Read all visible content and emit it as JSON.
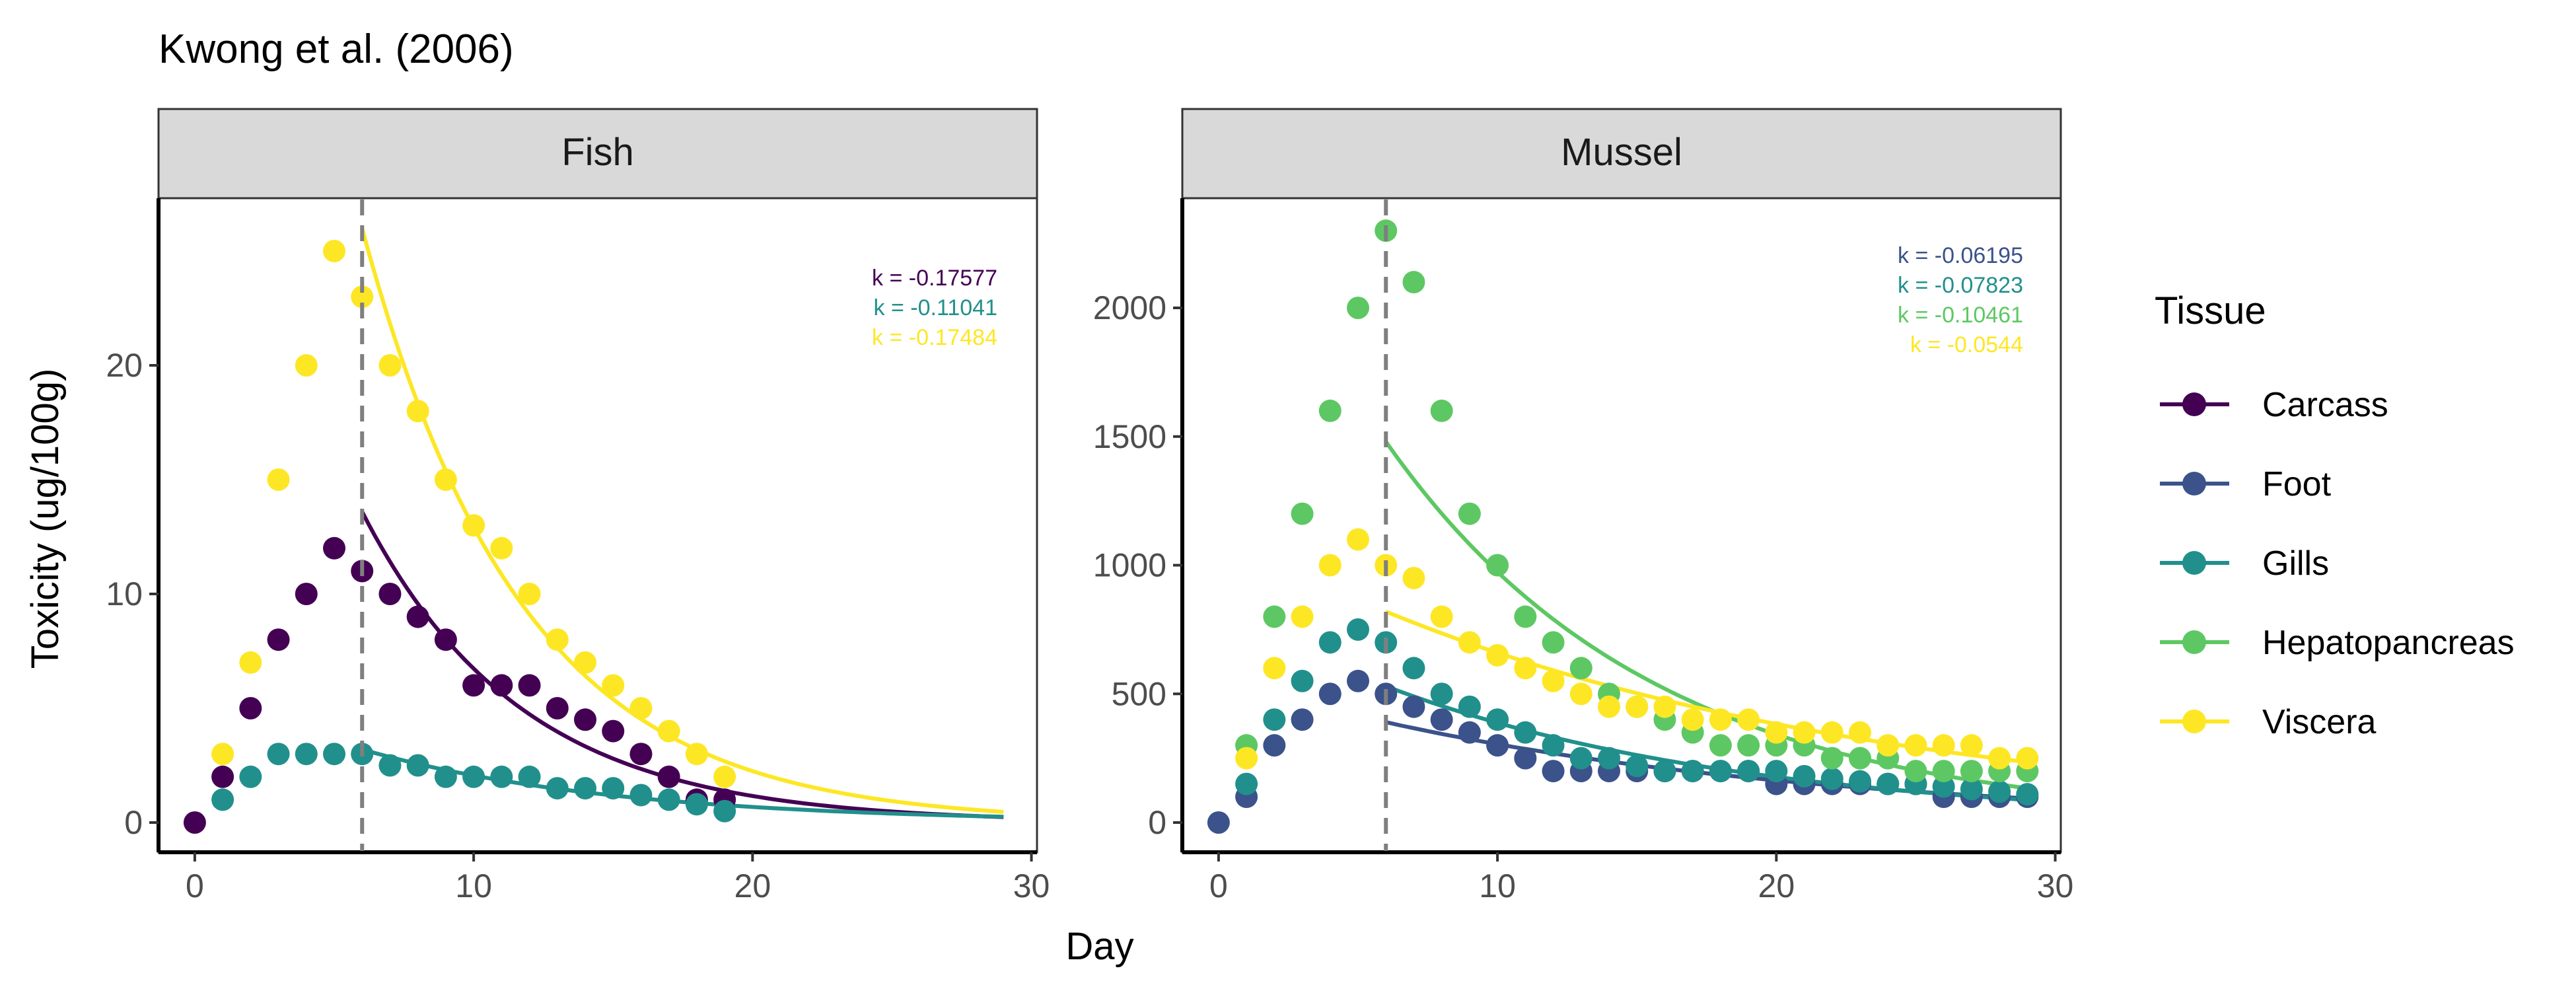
{
  "title": "Kwong et al. (2006)",
  "xlabel": "Day",
  "ylabel": "Toxicity (ug/100g)",
  "legend": {
    "title": "Tissue",
    "placement": "right",
    "items": [
      {
        "name": "Carcass",
        "color": "#440154"
      },
      {
        "name": "Foot",
        "color": "#3B528B"
      },
      {
        "name": "Gills",
        "color": "#21908C"
      },
      {
        "name": "Hepatopancreas",
        "color": "#5DC863"
      },
      {
        "name": "Viscera",
        "color": "#FDE725"
      }
    ]
  },
  "chart_data": [
    {
      "panel": "Fish",
      "type": "scatter",
      "xlim": [
        0,
        30
      ],
      "ylim": [
        0,
        26
      ],
      "xticks": [
        0,
        10,
        20,
        30
      ],
      "yticks": [
        0,
        10,
        20
      ],
      "x_tick_labels": [
        "0",
        "10",
        "20",
        "30"
      ],
      "y_tick_labels": [
        "0",
        "10",
        "20"
      ],
      "vline_x": 6,
      "grid": false,
      "k_labels": [
        {
          "text": "k = -0.17577",
          "color": "#440154"
        },
        {
          "text": "k = -0.11041",
          "color": "#21908C"
        },
        {
          "text": "k = -0.17484",
          "color": "#FDE725"
        }
      ],
      "series": [
        {
          "name": "Carcass",
          "color": "#440154",
          "points": [
            [
              0,
              0
            ],
            [
              1,
              2
            ],
            [
              2,
              5
            ],
            [
              3,
              8
            ],
            [
              4,
              10
            ],
            [
              5,
              12
            ],
            [
              6,
              11
            ],
            [
              7,
              10
            ],
            [
              8,
              9
            ],
            [
              9,
              8
            ],
            [
              10,
              6
            ],
            [
              11,
              6
            ],
            [
              12,
              6
            ],
            [
              13,
              5
            ],
            [
              14,
              4.5
            ],
            [
              15,
              4
            ],
            [
              16,
              3
            ],
            [
              17,
              2
            ],
            [
              18,
              1
            ],
            [
              19,
              1
            ]
          ],
          "fit": {
            "x0": 6,
            "y0": 13.6,
            "k": -0.17577,
            "x_end": 29
          }
        },
        {
          "name": "Gills",
          "color": "#21908C",
          "points": [
            [
              1,
              1
            ],
            [
              2,
              2
            ],
            [
              3,
              3
            ],
            [
              4,
              3
            ],
            [
              5,
              3
            ],
            [
              6,
              3
            ],
            [
              7,
              2.5
            ],
            [
              8,
              2.5
            ],
            [
              9,
              2
            ],
            [
              10,
              2
            ],
            [
              11,
              2
            ],
            [
              12,
              2
            ],
            [
              13,
              1.5
            ],
            [
              14,
              1.5
            ],
            [
              15,
              1.5
            ],
            [
              16,
              1.2
            ],
            [
              17,
              1
            ],
            [
              18,
              0.8
            ],
            [
              19,
              0.5
            ]
          ],
          "fit": {
            "x0": 6,
            "y0": 3.2,
            "k": -0.11041,
            "x_end": 29
          }
        },
        {
          "name": "Viscera",
          "color": "#FDE725",
          "points": [
            [
              1,
              3
            ],
            [
              2,
              7
            ],
            [
              3,
              15
            ],
            [
              4,
              20
            ],
            [
              5,
              25
            ],
            [
              6,
              23
            ],
            [
              7,
              20
            ],
            [
              8,
              18
            ],
            [
              9,
              15
            ],
            [
              10,
              13
            ],
            [
              11,
              12
            ],
            [
              12,
              10
            ],
            [
              13,
              8
            ],
            [
              14,
              7
            ],
            [
              15,
              6
            ],
            [
              16,
              5
            ],
            [
              17,
              4
            ],
            [
              18,
              3
            ],
            [
              19,
              2
            ]
          ],
          "fit": {
            "x0": 6,
            "y0": 26,
            "k": -0.17484,
            "x_end": 29
          }
        }
      ]
    },
    {
      "panel": "Mussel",
      "type": "scatter",
      "xlim": [
        0,
        30
      ],
      "ylim": [
        0,
        2350
      ],
      "xticks": [
        0,
        10,
        20,
        30
      ],
      "yticks": [
        0,
        500,
        1000,
        1500,
        2000
      ],
      "x_tick_labels": [
        "0",
        "10",
        "20",
        "30"
      ],
      "y_tick_labels": [
        "0",
        "500",
        "1000",
        "1500",
        "2000"
      ],
      "vline_x": 6,
      "grid": false,
      "k_labels": [
        {
          "text": "k = -0.06195",
          "color": "#3B528B"
        },
        {
          "text": "k = -0.07823",
          "color": "#21908C"
        },
        {
          "text": "k = -0.10461",
          "color": "#5DC863"
        },
        {
          "text": "k = -0.0544",
          "color": "#FDE725"
        }
      ],
      "series": [
        {
          "name": "Foot",
          "color": "#3B528B",
          "points": [
            [
              0,
              0
            ],
            [
              1,
              100
            ],
            [
              2,
              300
            ],
            [
              3,
              400
            ],
            [
              4,
              500
            ],
            [
              5,
              550
            ],
            [
              6,
              500
            ],
            [
              7,
              450
            ],
            [
              8,
              400
            ],
            [
              9,
              350
            ],
            [
              10,
              300
            ],
            [
              11,
              250
            ],
            [
              12,
              200
            ],
            [
              13,
              200
            ],
            [
              14,
              200
            ],
            [
              15,
              200
            ],
            [
              16,
              200
            ],
            [
              17,
              200
            ],
            [
              18,
              200
            ],
            [
              19,
              200
            ],
            [
              20,
              150
            ],
            [
              21,
              150
            ],
            [
              22,
              150
            ],
            [
              23,
              150
            ],
            [
              24,
              150
            ],
            [
              25,
              150
            ],
            [
              26,
              100
            ],
            [
              27,
              100
            ],
            [
              28,
              100
            ],
            [
              29,
              100
            ]
          ],
          "fit": {
            "x0": 6,
            "y0": 390,
            "k": -0.06195,
            "x_end": 29
          }
        },
        {
          "name": "Gills",
          "color": "#21908C",
          "points": [
            [
              1,
              150
            ],
            [
              2,
              400
            ],
            [
              3,
              550
            ],
            [
              4,
              700
            ],
            [
              5,
              750
            ],
            [
              6,
              700
            ],
            [
              7,
              600
            ],
            [
              8,
              500
            ],
            [
              9,
              450
            ],
            [
              10,
              400
            ],
            [
              11,
              350
            ],
            [
              12,
              300
            ],
            [
              13,
              250
            ],
            [
              14,
              250
            ],
            [
              15,
              220
            ],
            [
              16,
              200
            ],
            [
              17,
              200
            ],
            [
              18,
              200
            ],
            [
              19,
              200
            ],
            [
              20,
              200
            ],
            [
              21,
              180
            ],
            [
              22,
              170
            ],
            [
              23,
              160
            ],
            [
              24,
              150
            ],
            [
              25,
              150
            ],
            [
              26,
              140
            ],
            [
              27,
              130
            ],
            [
              28,
              120
            ],
            [
              29,
              110
            ]
          ],
          "fit": {
            "x0": 6,
            "y0": 530,
            "k": -0.07823,
            "x_end": 29
          }
        },
        {
          "name": "Hepatopancreas",
          "color": "#5DC863",
          "points": [
            [
              1,
              300
            ],
            [
              2,
              800
            ],
            [
              3,
              1200
            ],
            [
              4,
              1600
            ],
            [
              5,
              2000
            ],
            [
              6,
              2300
            ],
            [
              7,
              2100
            ],
            [
              8,
              1600
            ],
            [
              9,
              1200
            ],
            [
              10,
              1000
            ],
            [
              11,
              800
            ],
            [
              12,
              700
            ],
            [
              13,
              600
            ],
            [
              14,
              500
            ],
            [
              15,
              450
            ],
            [
              16,
              400
            ],
            [
              17,
              350
            ],
            [
              18,
              300
            ],
            [
              19,
              300
            ],
            [
              20,
              300
            ],
            [
              21,
              300
            ],
            [
              22,
              250
            ],
            [
              23,
              250
            ],
            [
              24,
              250
            ],
            [
              25,
              200
            ],
            [
              26,
              200
            ],
            [
              27,
              200
            ],
            [
              28,
              200
            ],
            [
              29,
              200
            ]
          ],
          "fit": {
            "x0": 6,
            "y0": 1480,
            "k": -0.10461,
            "x_end": 29
          }
        },
        {
          "name": "Viscera",
          "color": "#FDE725",
          "points": [
            [
              1,
              250
            ],
            [
              2,
              600
            ],
            [
              3,
              800
            ],
            [
              4,
              1000
            ],
            [
              5,
              1100
            ],
            [
              6,
              1000
            ],
            [
              7,
              950
            ],
            [
              8,
              800
            ],
            [
              9,
              700
            ],
            [
              10,
              650
            ],
            [
              11,
              600
            ],
            [
              12,
              550
            ],
            [
              13,
              500
            ],
            [
              14,
              450
            ],
            [
              15,
              450
            ],
            [
              16,
              450
            ],
            [
              17,
              400
            ],
            [
              18,
              400
            ],
            [
              19,
              400
            ],
            [
              20,
              350
            ],
            [
              21,
              350
            ],
            [
              22,
              350
            ],
            [
              23,
              350
            ],
            [
              24,
              300
            ],
            [
              25,
              300
            ],
            [
              26,
              300
            ],
            [
              27,
              300
            ],
            [
              28,
              250
            ],
            [
              29,
              250
            ]
          ],
          "fit": {
            "x0": 6,
            "y0": 820,
            "k": -0.0544,
            "x_end": 29
          }
        }
      ]
    }
  ]
}
